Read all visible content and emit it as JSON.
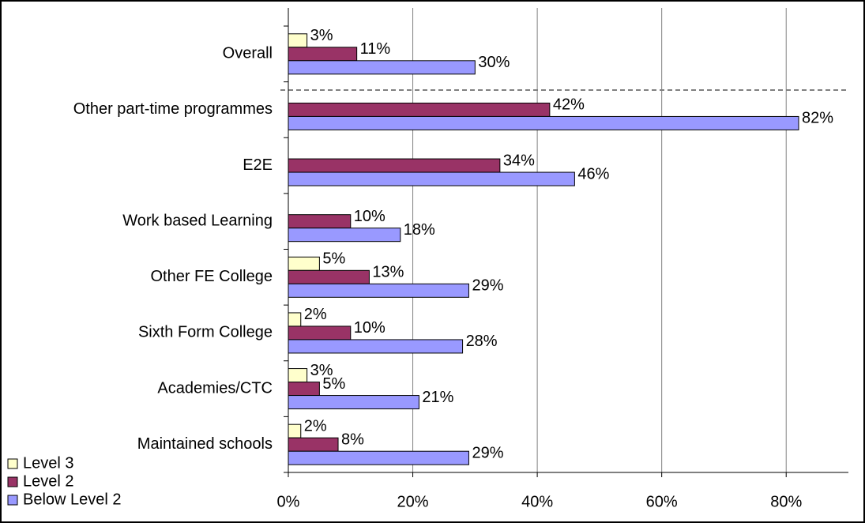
{
  "chart_data": {
    "type": "bar",
    "orientation": "horizontal",
    "categories": [
      "Overall",
      "Other part-time programmes",
      "E2E",
      "Work based Learning",
      "Other FE College",
      "Sixth Form College",
      "Academies/CTC",
      "Maintained schools"
    ],
    "series": [
      {
        "name": "Level 3",
        "color": "#ffffcc",
        "values": [
          3,
          null,
          null,
          null,
          5,
          2,
          3,
          2
        ],
        "value_labels": [
          "3%",
          null,
          null,
          null,
          "5%",
          "2%",
          "3%",
          "2%"
        ]
      },
      {
        "name": "Level 2",
        "color": "#993366",
        "values": [
          11,
          42,
          34,
          10,
          13,
          10,
          5,
          8
        ],
        "value_labels": [
          "11%",
          "42%",
          "34%",
          "10%",
          "13%",
          "10%",
          "5%",
          "8%"
        ]
      },
      {
        "name": "Below  Level 2",
        "color": "#9999ff",
        "values": [
          30,
          82,
          46,
          18,
          29,
          28,
          21,
          29
        ],
        "value_labels": [
          "30%",
          "82%",
          "46%",
          "18%",
          "29%",
          "28%",
          "21%",
          "29%"
        ]
      }
    ],
    "xlim": [
      0,
      90
    ],
    "xticks": [
      {
        "value": 0,
        "label": "0%"
      },
      {
        "value": 20,
        "label": "20%"
      },
      {
        "value": 40,
        "label": "40%"
      },
      {
        "value": 60,
        "label": "60%"
      },
      {
        "value": 80,
        "label": "80%"
      }
    ],
    "grid": true,
    "legend": "lower left"
  }
}
